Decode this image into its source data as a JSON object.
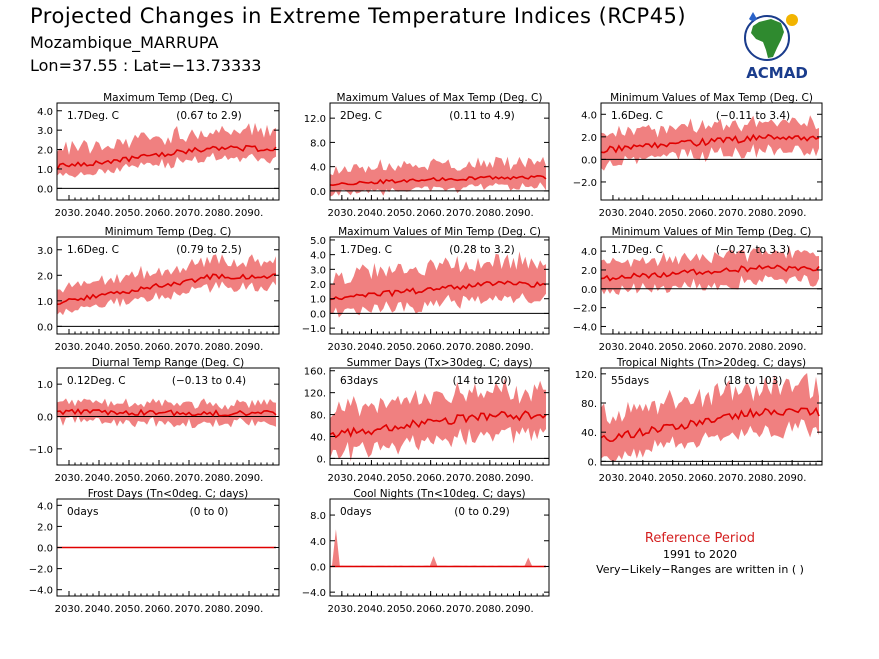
{
  "header": {
    "title": "Projected Changes in Extreme Temperature Indices (RCP45)",
    "location": "Mozambique_MARRUPA",
    "coords": "Lon=37.55 : Lat=−13.73333"
  },
  "logo": {
    "text": "ACMAD",
    "icon": "africa-map-logo"
  },
  "reference": {
    "title": "Reference Period",
    "years": "1991 to 2020",
    "note": "Very−Likely−Ranges are written in ( )"
  },
  "colors": {
    "band": "#f08080",
    "line": "#e00000",
    "frame": "#000000"
  },
  "chart_data": [
    {
      "type": "area",
      "title": "Maximum Temp (Deg. C)",
      "mean_label": "1.7Deg. C",
      "range_label": "(0.67 to 2.9)",
      "x": [
        "2030.",
        "2040.",
        "2050.",
        "2060.",
        "2070.",
        "2080.",
        "2090."
      ],
      "xlim": [
        2026,
        2100
      ],
      "ylim": [
        -0.6,
        4.4
      ],
      "yticks": [
        "0.0",
        "1.0",
        "2.0",
        "3.0",
        "4.0"
      ],
      "ytick_values": [
        0,
        1,
        2,
        3,
        4
      ],
      "mean_start": 1.1,
      "mean_end": 2.05,
      "band_low": 0.5,
      "band_high": 0.9,
      "wiggle": 0.15,
      "seed": 1
    },
    {
      "type": "area",
      "title": "Maximum Values of Max Temp (Deg. C)",
      "mean_label": "2Deg. C",
      "range_label": "(0.11 to 4.9)",
      "x": [
        "2030.",
        "2040.",
        "2050.",
        "2060.",
        "2070.",
        "2080.",
        "2090."
      ],
      "xlim": [
        2026,
        2100
      ],
      "ylim": [
        -1.5,
        14.5
      ],
      "yticks": [
        "0.0",
        "4.0",
        "8.0",
        "12.0"
      ],
      "ytick_values": [
        0,
        4,
        8,
        12
      ],
      "mean_start": 1.2,
      "mean_end": 2.2,
      "band_low": 1.5,
      "band_high": 2.5,
      "wiggle": 0.3,
      "seed": 2
    },
    {
      "type": "area",
      "title": "Minimum Values of Max Temp (Deg. C)",
      "mean_label": "1.6Deg. C",
      "range_label": "(−0.11 to 3.4)",
      "x": [
        "2030.",
        "2040.",
        "2050.",
        "2060.",
        "2070.",
        "2080.",
        "2090."
      ],
      "xlim": [
        2026,
        2100
      ],
      "ylim": [
        -3.6,
        5.0
      ],
      "yticks": [
        "−2.0",
        "0.0",
        "2.0",
        "4.0"
      ],
      "ytick_values": [
        -2,
        0,
        2,
        4
      ],
      "mean_start": 0.8,
      "mean_end": 1.9,
      "band_low": 1.2,
      "band_high": 1.4,
      "wiggle": 0.3,
      "seed": 3
    },
    {
      "type": "area",
      "title": "Minimum Temp (Deg. C)",
      "mean_label": "1.6Deg. C",
      "range_label": "(0.79 to 2.5)",
      "x": [
        "2030.",
        "2040.",
        "2050.",
        "2060.",
        "2070.",
        "2080.",
        "2090."
      ],
      "xlim": [
        2026,
        2100
      ],
      "ylim": [
        -0.3,
        3.5
      ],
      "yticks": [
        "0.0",
        "1.0",
        "2.0",
        "3.0"
      ],
      "ytick_values": [
        0,
        1,
        2,
        3
      ],
      "mean_start": 0.9,
      "mean_end": 1.95,
      "band_low": 0.4,
      "band_high": 0.6,
      "wiggle": 0.1,
      "seed": 4
    },
    {
      "type": "area",
      "title": "Maximum Values of Min Temp (Deg. C)",
      "mean_label": "1.7Deg. C",
      "range_label": "(0.28 to 3.2)",
      "x": [
        "2030.",
        "2040.",
        "2050.",
        "2060.",
        "2070.",
        "2080.",
        "2090."
      ],
      "xlim": [
        2026,
        2100
      ],
      "ylim": [
        -1.4,
        5.2
      ],
      "yticks": [
        "−1.0",
        "0.0",
        "1.0",
        "2.0",
        "3.0",
        "4.0",
        "5.0"
      ],
      "ytick_values": [
        -1,
        0,
        1,
        2,
        3,
        4,
        5
      ],
      "mean_start": 1.0,
      "mean_end": 2.0,
      "band_low": 1.0,
      "band_high": 1.5,
      "wiggle": 0.2,
      "seed": 5
    },
    {
      "type": "area",
      "title": "Minimum Values of Min Temp (Deg. C)",
      "mean_label": "1.7Deg. C",
      "range_label": "(−0.27 to 3.3)",
      "x": [
        "2030.",
        "2040.",
        "2050.",
        "2060.",
        "2070.",
        "2080.",
        "2090."
      ],
      "xlim": [
        2026,
        2100
      ],
      "ylim": [
        -4.8,
        5.5
      ],
      "yticks": [
        "−4.0",
        "−2.0",
        "0.0",
        "2.0",
        "4.0"
      ],
      "ytick_values": [
        -4,
        -2,
        0,
        2,
        4
      ],
      "mean_start": 1.1,
      "mean_end": 2.2,
      "band_low": 1.4,
      "band_high": 1.6,
      "wiggle": 0.3,
      "seed": 6
    },
    {
      "type": "area",
      "title": "Diurnal Temp Range (Deg. C)",
      "mean_label": "0.12Deg. C",
      "range_label": "(−0.13 to 0.4)",
      "x": [
        "2030.",
        "2040.",
        "2050.",
        "2060.",
        "2070.",
        "2080.",
        "2090."
      ],
      "xlim": [
        2026,
        2100
      ],
      "ylim": [
        -1.5,
        1.5
      ],
      "yticks": [
        "−1.0",
        "0.0",
        "1.0"
      ],
      "ytick_values": [
        -1,
        0,
        1
      ],
      "mean_start": 0.15,
      "mean_end": 0.1,
      "band_low": 0.3,
      "band_high": 0.3,
      "wiggle": 0.08,
      "seed": 7
    },
    {
      "type": "area",
      "title": "Summer Days (Tx>30deg. C; days)",
      "mean_label": "63days",
      "range_label": "(14 to 120)",
      "x": [
        "2030.",
        "2040.",
        "2050.",
        "2060.",
        "2070.",
        "2080.",
        "2090."
      ],
      "xlim": [
        2026,
        2100
      ],
      "ylim": [
        -12,
        165
      ],
      "yticks": [
        "0.",
        "40.",
        "80.",
        "120.",
        "160."
      ],
      "ytick_values": [
        0,
        40,
        80,
        120,
        160
      ],
      "mean_start": 42,
      "mean_end": 78,
      "band_low": 35,
      "band_high": 45,
      "wiggle": 8,
      "seed": 8
    },
    {
      "type": "area",
      "title": "Tropical Nights (Tn>20deg. C; days)",
      "mean_label": "55days",
      "range_label": "(18 to 103)",
      "x": [
        "2030.",
        "2040.",
        "2050.",
        "2060.",
        "2070.",
        "2080.",
        "2090."
      ],
      "xlim": [
        2026,
        2100
      ],
      "ylim": [
        -5,
        128
      ],
      "yticks": [
        "0.",
        "40.",
        "80.",
        "120."
      ],
      "ytick_values": [
        0,
        40,
        80,
        120
      ],
      "mean_start": 30,
      "mean_end": 68,
      "band_low": 25,
      "band_high": 35,
      "wiggle": 6,
      "seed": 9
    },
    {
      "type": "area",
      "title": "Frost Days (Tn<0deg. C; days)",
      "mean_label": "0days",
      "range_label": "(0 to 0)",
      "x": [
        "2030.",
        "2040.",
        "2050.",
        "2060.",
        "2070.",
        "2080.",
        "2090."
      ],
      "xlim": [
        2026,
        2100
      ],
      "ylim": [
        -4.6,
        4.6
      ],
      "yticks": [
        "−4.0",
        "−2.0",
        "0.0",
        "2.0",
        "4.0"
      ],
      "ytick_values": [
        -4,
        -2,
        0,
        2,
        4
      ],
      "mean_start": 0,
      "mean_end": 0,
      "band_low": 0,
      "band_high": 0,
      "wiggle": 0,
      "seed": 10
    },
    {
      "type": "area",
      "title": "Cool Nights (Tn<10deg. C; days)",
      "mean_label": "0days",
      "range_label": "(0 to 0.29)",
      "x": [
        "2030.",
        "2040.",
        "2050.",
        "2060.",
        "2070.",
        "2080.",
        "2090."
      ],
      "xlim": [
        2026,
        2100
      ],
      "ylim": [
        -4.6,
        10.5
      ],
      "yticks": [
        "−4.0",
        "0.0",
        "4.0",
        "8.0"
      ],
      "ytick_values": [
        -4,
        0,
        4,
        8
      ],
      "mean_start": 0,
      "mean_end": 0,
      "band_low": 0,
      "band_high": 0.1,
      "wiggle": 0,
      "seed": 11,
      "spikes": [
        [
          2028,
          5.8
        ],
        [
          2061,
          1.6
        ],
        [
          2093,
          1.4
        ]
      ]
    }
  ]
}
